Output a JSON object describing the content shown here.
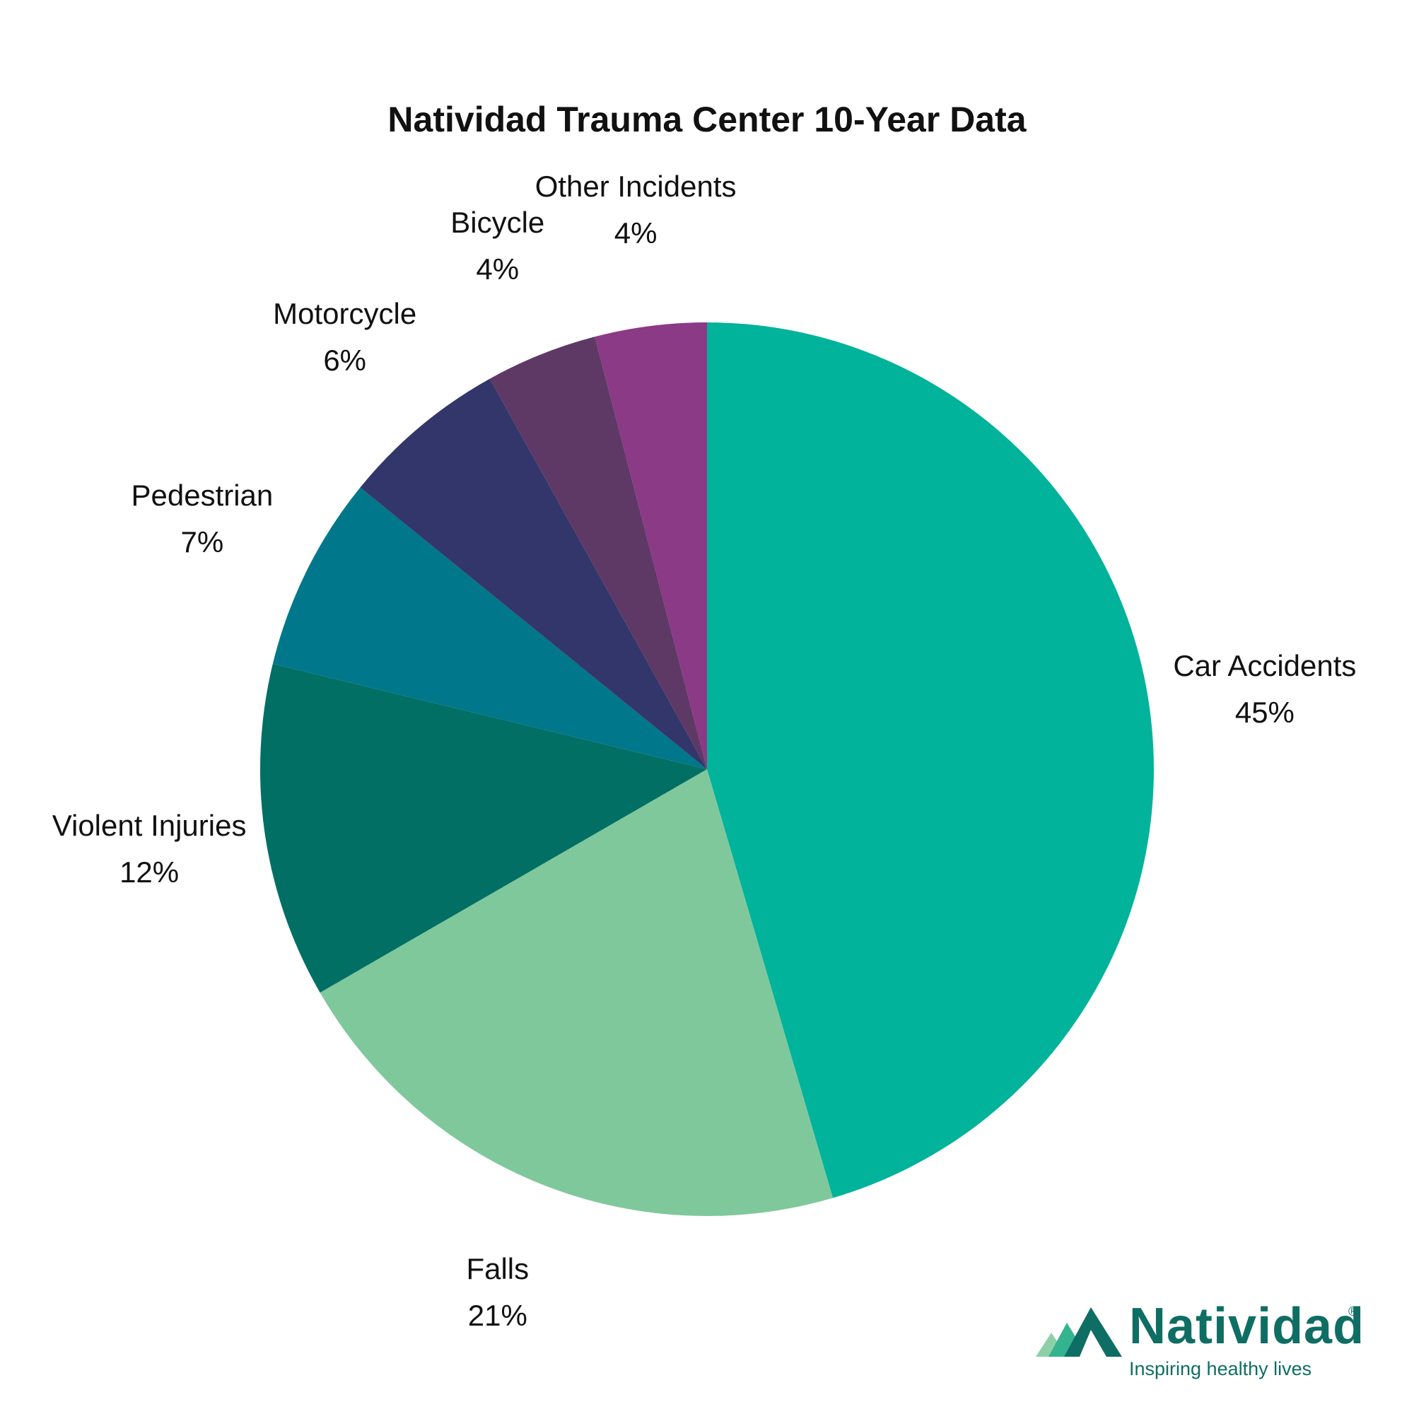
{
  "chart_data": {
    "type": "pie",
    "title": "Natividad Trauma Center 10-Year Data",
    "categories": [
      "Car Accidents",
      "Falls",
      "Violent Injuries",
      "Pedestrian",
      "Motorcycle",
      "Bicycle",
      "Other Incidents"
    ],
    "values": [
      45,
      21,
      12,
      7,
      6,
      4,
      4
    ],
    "value_labels": [
      "45%",
      "21%",
      "12%",
      "7%",
      "6%",
      "4%",
      "4%"
    ],
    "colors": [
      "#00b39a",
      "#7fc89c",
      "#016f64",
      "#00778a",
      "#32366b",
      "#5e3966",
      "#8b3a85"
    ],
    "start_angle": "12 o'clock",
    "direction": "clockwise",
    "legend": "none (labels outside slices)"
  },
  "logo": {
    "name": "Natividad",
    "registered": "®",
    "tagline": "Inspiring healthy lives",
    "color": "#0f6e64",
    "icon": "mountain-peaks-icon"
  }
}
